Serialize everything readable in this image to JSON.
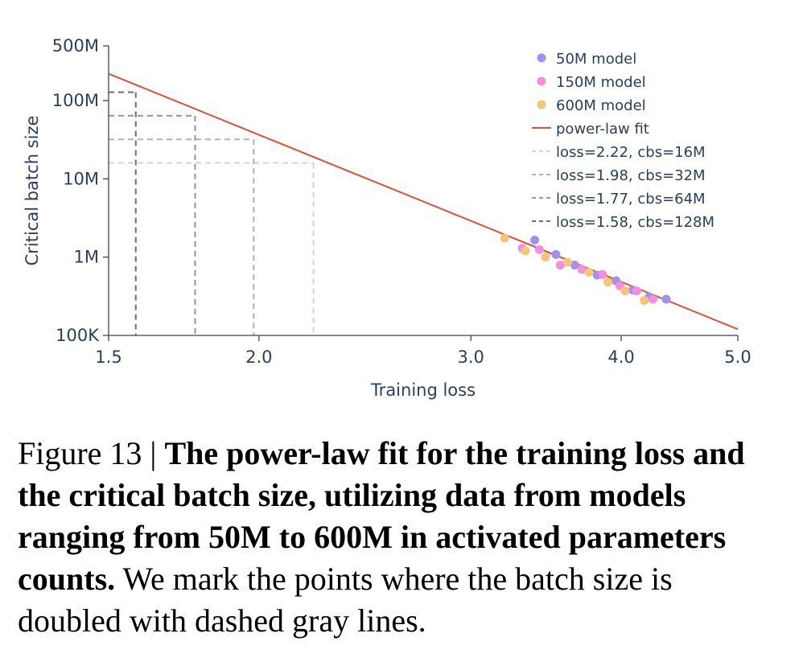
{
  "chart_data": {
    "type": "scatter",
    "xlabel": "Training loss",
    "ylabel": "Critical batch size",
    "x_scale": "log",
    "y_scale": "log",
    "xlim": [
      1.5,
      5.0
    ],
    "ylim": [
      100000,
      500000000
    ],
    "x_ticks": [
      1.5,
      2.0,
      3.0,
      4.0,
      5.0
    ],
    "x_tick_labels": [
      "1.5",
      "2.0",
      "3.0",
      "4.0",
      "5.0"
    ],
    "y_ticks": [
      100000,
      1000000,
      10000000,
      100000000,
      500000000
    ],
    "y_tick_labels": [
      "100K",
      "1M",
      "10M",
      "100M",
      "500M"
    ],
    "legend_position": "top-right",
    "series": [
      {
        "name": "50M model",
        "color": "#a390ee",
        "points": [
          [
            3.39,
            1650000
          ],
          [
            3.53,
            1080000
          ],
          [
            3.66,
            790000
          ],
          [
            3.82,
            590000
          ],
          [
            3.96,
            500000
          ],
          [
            4.09,
            380000
          ],
          [
            4.22,
            310000
          ],
          [
            4.36,
            290000
          ]
        ]
      },
      {
        "name": "150M model",
        "color": "#f38ee0",
        "points": [
          [
            3.31,
            1300000
          ],
          [
            3.42,
            1250000
          ],
          [
            3.56,
            790000
          ],
          [
            3.71,
            700000
          ],
          [
            3.86,
            600000
          ],
          [
            3.99,
            430000
          ],
          [
            4.12,
            370000
          ],
          [
            4.25,
            290000
          ]
        ]
      },
      {
        "name": "600M model",
        "color": "#f6c577",
        "points": [
          [
            3.2,
            1750000
          ],
          [
            3.33,
            1200000
          ],
          [
            3.46,
            1000000
          ],
          [
            3.61,
            860000
          ],
          [
            3.76,
            640000
          ],
          [
            3.9,
            480000
          ],
          [
            4.03,
            370000
          ],
          [
            4.18,
            280000
          ]
        ]
      },
      {
        "name": "power-law fit",
        "color": "#e04f3a",
        "line": [
          [
            1.5,
            220000000
          ],
          [
            5.0,
            120000
          ]
        ]
      }
    ],
    "reference_lines": [
      {
        "name": "loss=2.22, cbs=16M",
        "loss": 2.22,
        "cbs": 16000000,
        "color": "#d4d4d4"
      },
      {
        "name": "loss=1.98, cbs=32M",
        "loss": 1.98,
        "cbs": 32000000,
        "color": "#b2b2b2"
      },
      {
        "name": "loss=1.77, cbs=64M",
        "loss": 1.77,
        "cbs": 64000000,
        "color": "#969696"
      },
      {
        "name": "loss=1.58, cbs=128M",
        "loss": 1.58,
        "cbs": 128000000,
        "color": "#6e6e6e"
      }
    ]
  },
  "caption": {
    "label": "Figure 13 | ",
    "bold": "The power-law fit for the training loss and the critical batch size, utilizing data from models ranging from 50M to 600M in activated parameters counts.",
    "rest": " We mark the points where the batch size is doubled with dashed gray lines."
  }
}
